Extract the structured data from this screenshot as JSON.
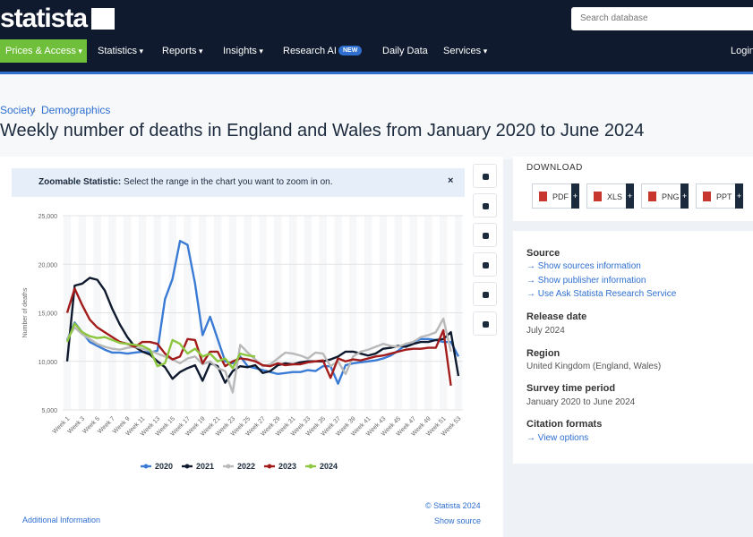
{
  "header": {
    "logo": "statista",
    "search_placeholder": "Search database",
    "nav": [
      "Prices & Access",
      "Statistics",
      "Reports",
      "Insights",
      "Research AI",
      "Daily Data",
      "Services"
    ],
    "badge": "NEW",
    "login": "Login"
  },
  "breadcrumb": [
    "Society",
    "Demographics"
  ],
  "title": "Weekly number of deaths in England and Wales from January 2020 to June 2024",
  "zoom_notice": {
    "label": "Zoomable Statistic:",
    "text": "Select the range in the chart you want to zoom in on."
  },
  "chart_data": {
    "type": "line",
    "ylabel": "Number of deaths",
    "categories": [
      "Week 1",
      null,
      "Week 3",
      null,
      "Week 5",
      null,
      "Week 7",
      null,
      "Week 9",
      null,
      "Week 11",
      null,
      "Week 13",
      null,
      "Week 15",
      null,
      "Week 17",
      null,
      "Week 19",
      null,
      "Week 21",
      null,
      "Week 23",
      null,
      "Week 25",
      null,
      "Week 27",
      null,
      "Week 29",
      null,
      "Week 31",
      null,
      "Week 33",
      null,
      "Week 35",
      null,
      "Week 37",
      null,
      "Week 39",
      null,
      "Week 41",
      null,
      "Week 43",
      null,
      "Week 45",
      null,
      "Week 47",
      null,
      "Week 49",
      null,
      "Week 51",
      null,
      "Week 53"
    ],
    "ylim": [
      5000,
      25000
    ],
    "yticks": [
      {
        "value": 5000,
        "label": "5,000"
      },
      {
        "value": 10000,
        "label": "10,000"
      },
      {
        "value": 15000,
        "label": "15,000"
      },
      {
        "value": 20000,
        "label": "20,000"
      },
      {
        "value": 25000,
        "label": "25,000"
      }
    ],
    "grid": true,
    "series": [
      {
        "name": "2020",
        "color": "#3a7bd5",
        "values": [
          12200,
          14000,
          13000,
          12000,
          11600,
          11200,
          10900,
          10900,
          10800,
          10900,
          11000,
          10900,
          11100,
          16400,
          18500,
          22400,
          22000,
          18000,
          12700,
          14600,
          12300,
          10000,
          9800,
          10500,
          9500,
          9300,
          9100,
          8900,
          8700,
          8800,
          8900,
          8900,
          9100,
          9000,
          9500,
          9500,
          7700,
          9600,
          9800,
          9900,
          10000,
          10100,
          10300,
          10600,
          11100,
          11700,
          12000,
          12300,
          12300,
          12200,
          12000,
          12000,
          10500
        ]
      },
      {
        "name": "2021",
        "color": "#0f1a2e",
        "values": [
          10000,
          17800,
          18000,
          18600,
          18400,
          17300,
          15400,
          13800,
          12500,
          11500,
          11000,
          10700,
          10000,
          9400,
          8200,
          8900,
          9300,
          9600,
          8000,
          9800,
          9500,
          7800,
          9000,
          9500,
          9400,
          9600,
          8800,
          9000,
          9600,
          9800,
          9700,
          9900,
          10000,
          10000,
          10000,
          10200,
          10500,
          11000,
          11000,
          10800,
          10600,
          10800,
          11300,
          11400,
          11600,
          11500,
          11800,
          12000,
          12000,
          12200,
          12300,
          13000,
          8500
        ]
      },
      {
        "name": "2022",
        "color": "#b9b9b9",
        "values": [
          12300,
          13500,
          12800,
          12300,
          11800,
          11500,
          11300,
          11200,
          11400,
          11500,
          11300,
          11100,
          10800,
          10500,
          10200,
          9800,
          10300,
          10500,
          9700,
          10000,
          9300,
          9000,
          6800,
          11700,
          10900,
          10200,
          9500,
          9700,
          10300,
          10900,
          10800,
          10600,
          10300,
          10900,
          10800,
          9500,
          10000,
          8700,
          10500,
          11000,
          11200,
          11500,
          11800,
          11600,
          11500,
          11800,
          12000,
          12500,
          12700,
          13000,
          14400,
          11000,
          null
        ]
      },
      {
        "name": "2023",
        "color": "#a31c1c",
        "values": [
          15000,
          17500,
          15800,
          14300,
          13500,
          13000,
          12500,
          12000,
          11800,
          11500,
          12000,
          12000,
          11800,
          10800,
          10200,
          10500,
          12300,
          12200,
          9800,
          11000,
          11000,
          9500,
          10000,
          10300,
          10200,
          10000,
          9600,
          9500,
          9800,
          9600,
          9700,
          9700,
          9900,
          10000,
          10100,
          8300,
          10300,
          10000,
          10200,
          10100,
          10300,
          10500,
          10600,
          10800,
          11000,
          11200,
          11300,
          11300,
          11400,
          11400,
          13200,
          7500,
          null
        ]
      },
      {
        "name": "2024",
        "color": "#8dc63f",
        "values": [
          12000,
          13900,
          13000,
          12600,
          12400,
          12500,
          12200,
          11900,
          11800,
          11700,
          11600,
          11200,
          9500,
          9800,
          12200,
          11800,
          10800,
          11300,
          10500,
          10800,
          10000,
          10300,
          9300,
          10800,
          10600,
          10500,
          null,
          null,
          null,
          null,
          null,
          null,
          null,
          null,
          null,
          null,
          null,
          null,
          null,
          null,
          null,
          null,
          null,
          null,
          null,
          null,
          null,
          null,
          null,
          null,
          null,
          null,
          null
        ]
      }
    ]
  },
  "chart_footer": {
    "copyright": "© Statista 2024",
    "show_source": "Show source",
    "additional": "Additional Information"
  },
  "download": {
    "title": "DOWNLOAD",
    "formats": [
      "PDF",
      "XLS",
      "PNG",
      "PPT"
    ]
  },
  "details": {
    "source_title": "Source",
    "source_links": [
      "Show sources information",
      "Show publisher information",
      "Use Ask Statista Research Service"
    ],
    "release_title": "Release date",
    "release": "July 2024",
    "region_title": "Region",
    "region": "United Kingdom (England, Wales)",
    "survey_title": "Survey time period",
    "survey": "January 2020 to June 2024",
    "citation_title": "Citation formats",
    "citation_link": "View options"
  }
}
